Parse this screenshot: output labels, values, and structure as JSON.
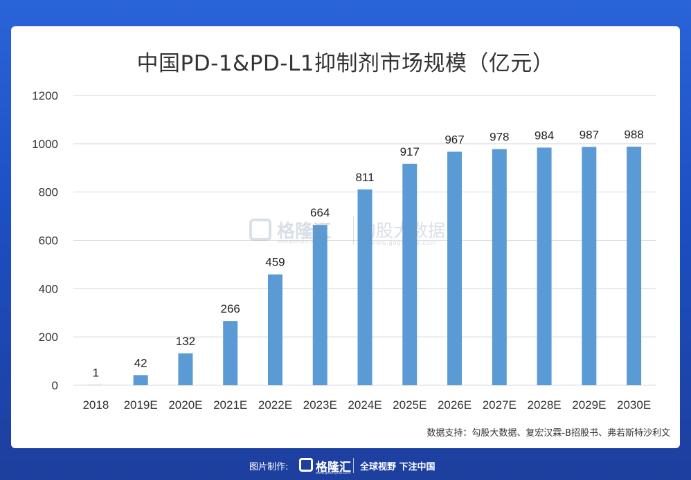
{
  "footer": {
    "made_by_label": "图片制作:",
    "brand": "格隆汇",
    "brand_sub": "www.gelonghui.com",
    "slogan": "全球视野 下注中国"
  },
  "watermark": {
    "left_text": "格隆汇",
    "left_sub": "www.gelonghui.com",
    "right_text": "勾股大数据",
    "right_sub": "www.gogudata.com"
  },
  "source": "数据支持：勾股大数据、复宏汉霖-B招股书、弗若斯特沙利文",
  "chart_data": {
    "type": "bar",
    "title": "中国PD-1&PD-L1抑制剂市场规模（亿元）",
    "categories": [
      "2018",
      "2019E",
      "2020E",
      "2021E",
      "2022E",
      "2023E",
      "2024E",
      "2025E",
      "2026E",
      "2027E",
      "2028E",
      "2029E",
      "2030E"
    ],
    "values": [
      1,
      42,
      132,
      266,
      459,
      664,
      811,
      917,
      967,
      978,
      984,
      987,
      988
    ],
    "data_labels": [
      "1",
      "42",
      "132",
      "266",
      "459",
      "664",
      "811",
      "917",
      "967",
      "978",
      "984",
      "987",
      "988"
    ],
    "yticks": [
      0,
      200,
      400,
      600,
      800,
      1000,
      1200
    ],
    "ylim": [
      0,
      1200
    ],
    "grid": true,
    "legend": "none",
    "bar_color": "#5b9bd5",
    "grid_color": "#d9d9d9"
  }
}
